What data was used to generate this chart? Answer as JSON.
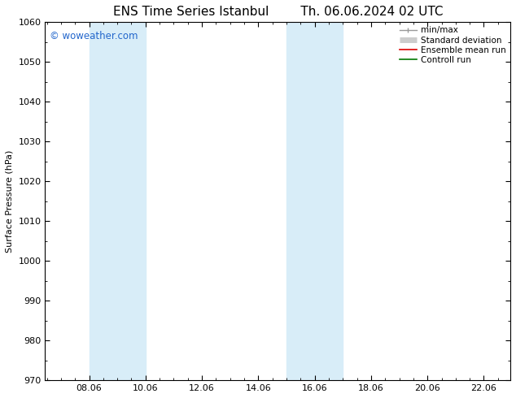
{
  "title_left": "ENS Time Series Istanbul",
  "title_right": "Th. 06.06.2024 02 UTC",
  "ylabel": "Surface Pressure (hPa)",
  "ylim": [
    970,
    1060
  ],
  "yticks": [
    970,
    980,
    990,
    1000,
    1010,
    1020,
    1030,
    1040,
    1050,
    1060
  ],
  "xlim_start": 6.5,
  "xlim_end": 23.0,
  "xticks": [
    8.06,
    10.06,
    12.06,
    14.06,
    16.06,
    18.06,
    20.06,
    22.06
  ],
  "xtick_labels": [
    "08.06",
    "10.06",
    "12.06",
    "14.06",
    "16.06",
    "18.06",
    "20.06",
    "22.06"
  ],
  "watermark": "© woweather.com",
  "watermark_color": "#2266cc",
  "bg_color": "#ffffff",
  "plot_bg_color": "#ffffff",
  "shaded_bands": [
    {
      "x_start": 7.5,
      "x_end": 9.5,
      "color": "#d8edf8"
    },
    {
      "x_start": 9.5,
      "x_end": 10.5,
      "color": "#d8edf8"
    },
    {
      "x_start": 15.0,
      "x_end": 15.5,
      "color": "#d8edf8"
    },
    {
      "x_start": 15.5,
      "x_end": 17.0,
      "color": "#d8edf8"
    }
  ],
  "legend_entries": [
    {
      "label": "min/max",
      "color": "#999999",
      "lw": 1.0
    },
    {
      "label": "Standard deviation",
      "color": "#cccccc",
      "lw": 5
    },
    {
      "label": "Ensemble mean run",
      "color": "#dd0000",
      "lw": 1.2
    },
    {
      "label": "Controll run",
      "color": "#007700",
      "lw": 1.2
    }
  ],
  "font_family": "DejaVu Sans",
  "title_fontsize": 11,
  "tick_fontsize": 8,
  "legend_fontsize": 7.5,
  "ylabel_fontsize": 8
}
